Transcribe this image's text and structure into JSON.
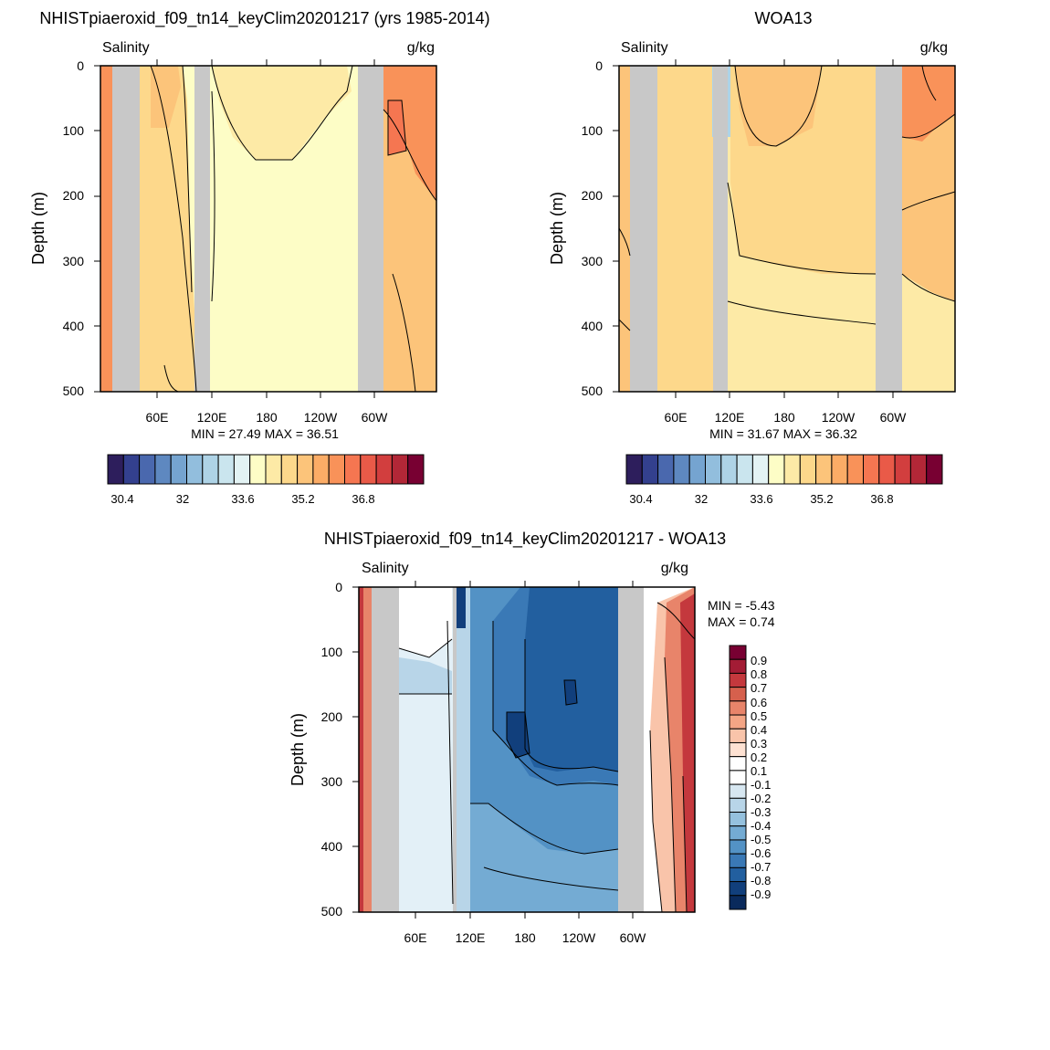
{
  "panels": [
    {
      "title": "NHISTpiaeroxid_f09_tn14_keyClim20201217 (yrs 1985-2014)",
      "left_label": "Salinity",
      "right_label": "g/kg",
      "ylabel": "Depth (m)",
      "yticks": [
        "0",
        "100",
        "200",
        "300",
        "400",
        "500"
      ],
      "xticks": [
        "60E",
        "120E",
        "180",
        "120W",
        "60W"
      ],
      "minmax": "MIN =  27.49  MAX =  36.51",
      "colorbar_ticks": [
        "30.4",
        "32",
        "33.6",
        "35.2",
        "36.8"
      ]
    },
    {
      "title": "WOA13",
      "left_label": "Salinity",
      "right_label": "g/kg",
      "ylabel": "Depth (m)",
      "yticks": [
        "0",
        "100",
        "200",
        "300",
        "400",
        "500"
      ],
      "xticks": [
        "60E",
        "120E",
        "180",
        "120W",
        "60W"
      ],
      "minmax": "MIN =  31.67  MAX =  36.32",
      "colorbar_ticks": [
        "30.4",
        "32",
        "33.6",
        "35.2",
        "36.8"
      ]
    },
    {
      "title": "NHISTpiaeroxid_f09_tn14_keyClim20201217 - WOA13",
      "left_label": "Salinity",
      "right_label": "g/kg",
      "ylabel": "Depth (m)",
      "yticks": [
        "0",
        "100",
        "200",
        "300",
        "400",
        "500"
      ],
      "xticks": [
        "60E",
        "120E",
        "180",
        "120W",
        "60W"
      ],
      "min_text": "MIN =  -5.43",
      "max_text": "MAX =   0.74",
      "colorbar_ticks": [
        "0.9",
        "0.8",
        "0.7",
        "0.6",
        "0.5",
        "0.4",
        "0.3",
        "0.2",
        "0.1",
        "-0.1",
        "-0.2",
        "-0.3",
        "-0.4",
        "-0.5",
        "-0.6",
        "-0.7",
        "-0.8",
        "-0.9"
      ]
    }
  ],
  "colors": {
    "salinity_scale": [
      "#2d1e5c",
      "#33408e",
      "#4a68ae",
      "#5e88c0",
      "#75a4d0",
      "#92bedd",
      "#aed3e6",
      "#cae5ee",
      "#e3f3f4",
      "#fdfdc6",
      "#fdeaa6",
      "#fdd88b",
      "#fcc47a",
      "#fbac66",
      "#f99259",
      "#f57651",
      "#e95a48",
      "#d23e3e",
      "#b22737",
      "#780032"
    ],
    "difference_scale": [
      "#780032",
      "#a31c35",
      "#c4383d",
      "#d6604d",
      "#e8846a",
      "#f4a585",
      "#f9c4aa",
      "#fde1d2",
      "#ffffff",
      "#ffffff",
      "#d7e7f1",
      "#b8d5e8",
      "#95c1de",
      "#74abd3",
      "#5392c5",
      "#3a79b6",
      "#225f9f",
      "#113f7c",
      "#0a2a5c"
    ],
    "land": "#c8c8c8"
  },
  "chart_data": [
    {
      "type": "heatmap",
      "title": "NHISTpiaeroxid_f09_tn14_keyClim20201217 (yrs 1985-2014)",
      "variable": "Salinity",
      "units": "g/kg",
      "ylabel": "Depth (m)",
      "ylim": [
        0,
        500
      ],
      "y_reversed": true,
      "x_ticks": [
        "60E",
        "120E",
        "180",
        "120W",
        "60W"
      ],
      "min": 27.49,
      "max": 36.51,
      "colorbar_levels": [
        30.4,
        30.8,
        31.2,
        31.6,
        32,
        32.4,
        32.8,
        33.2,
        33.6,
        34,
        34.4,
        34.8,
        35.2,
        35.6,
        36,
        36.4,
        36.8,
        37.2,
        37.6
      ],
      "regions": [
        {
          "lon_start": 0,
          "lon_end": 0.04,
          "value": 35.2
        },
        {
          "lon_start": 0.04,
          "lon_end": 0.12,
          "value": "land"
        },
        {
          "lon_start": 0.12,
          "lon_end": 0.29,
          "value": 34.6
        },
        {
          "lon_start": 0.29,
          "lon_end": 0.34,
          "value": "land"
        },
        {
          "lon_start": 0.34,
          "lon_end": 0.8,
          "value": 34.0
        },
        {
          "lon_start": 0.8,
          "lon_end": 0.88,
          "value": "land"
        },
        {
          "lon_start": 0.88,
          "lon_end": 1.0,
          "value": 35.8
        }
      ]
    },
    {
      "type": "heatmap",
      "title": "WOA13",
      "variable": "Salinity",
      "units": "g/kg",
      "ylabel": "Depth (m)",
      "ylim": [
        0,
        500
      ],
      "y_reversed": true,
      "x_ticks": [
        "60E",
        "120E",
        "180",
        "120W",
        "60W"
      ],
      "min": 31.67,
      "max": 36.32,
      "colorbar_levels": [
        30.4,
        30.8,
        31.2,
        31.6,
        32,
        32.4,
        32.8,
        33.2,
        33.6,
        34,
        34.4,
        34.8,
        35.2,
        35.6,
        36,
        36.4,
        36.8,
        37.2,
        37.6
      ],
      "regions": [
        {
          "lon_start": 0,
          "lon_end": 0.02,
          "value": 35.0
        },
        {
          "lon_start": 0.02,
          "lon_end": 0.1,
          "value": "land"
        },
        {
          "lon_start": 0.1,
          "lon_end": 0.27,
          "value": 34.8
        },
        {
          "lon_start": 0.27,
          "lon_end": 0.31,
          "value": "land"
        },
        {
          "lon_start": 0.31,
          "lon_end": 0.78,
          "value": 34.6
        },
        {
          "lon_start": 0.78,
          "lon_end": 0.86,
          "value": "land"
        },
        {
          "lon_start": 0.86,
          "lon_end": 1.0,
          "value": 35.4
        }
      ]
    },
    {
      "type": "heatmap",
      "title": "NHISTpiaeroxid_f09_tn14_keyClim20201217 - WOA13",
      "variable": "Salinity",
      "units": "g/kg",
      "ylabel": "Depth (m)",
      "ylim": [
        0,
        500
      ],
      "y_reversed": true,
      "x_ticks": [
        "60E",
        "120E",
        "180",
        "120W",
        "60W"
      ],
      "min": -5.43,
      "max": 0.74,
      "colorbar_levels": [
        0.9,
        0.8,
        0.7,
        0.6,
        0.5,
        0.4,
        0.3,
        0.2,
        0.1,
        -0.1,
        -0.2,
        -0.3,
        -0.4,
        -0.5,
        -0.6,
        -0.7,
        -0.8,
        -0.9
      ],
      "regions": [
        {
          "lon_start": 0,
          "lon_end": 0.04,
          "value": 0.5
        },
        {
          "lon_start": 0.04,
          "lon_end": 0.12,
          "value": "land"
        },
        {
          "lon_start": 0.12,
          "lon_end": 0.33,
          "value": -0.2
        },
        {
          "lon_start": 0.33,
          "lon_end": 0.37,
          "value": "land"
        },
        {
          "lon_start": 0.37,
          "lon_end": 0.79,
          "value": -0.6
        },
        {
          "lon_start": 0.79,
          "lon_end": 0.87,
          "value": "land"
        },
        {
          "lon_start": 0.87,
          "lon_end": 1.0,
          "value": 0.4
        }
      ]
    }
  ]
}
